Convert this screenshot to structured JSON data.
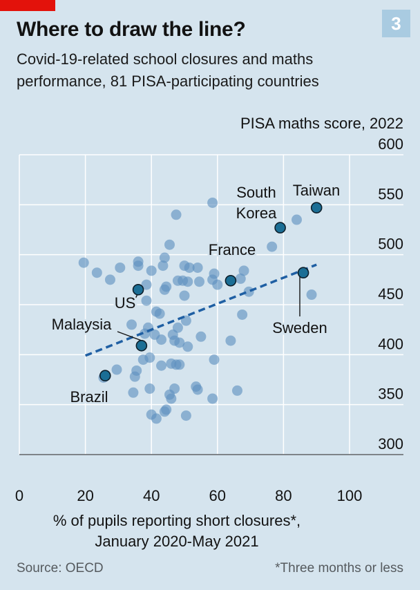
{
  "header": {
    "title": "Where to draw the line?",
    "subtitle": "Covid-19-related school closures and maths performance, 81 PISA-participating countries",
    "badge": "3"
  },
  "footer": {
    "source": "Source: OECD",
    "footnote": "*Three months or less"
  },
  "colors": {
    "background": "#d5e4ee",
    "accent_red": "#e3120b",
    "badge_bg": "#a9cbe1",
    "point": "#5e8fbf",
    "highlight_point": "#1b6e95",
    "trend": "#1f5fa3",
    "grid": "#ffffff"
  },
  "chart_data": {
    "type": "scatter",
    "ylabel": "PISA maths score, 2022",
    "xlabel_line1": "% of pupils reporting short closures*,",
    "xlabel_line2": "January 2020-May 2021",
    "xlim": [
      0,
      100
    ],
    "ylim": [
      300,
      600
    ],
    "x_ticks": [
      "0",
      "20",
      "40",
      "60",
      "80",
      "100"
    ],
    "x_tick_values": [
      0,
      20,
      40,
      60,
      80,
      100
    ],
    "y_ticks": [
      "300",
      "350",
      "400",
      "450",
      "500",
      "550",
      "600"
    ],
    "y_tick_values": [
      300,
      350,
      400,
      450,
      500,
      550,
      600
    ],
    "trend_line": {
      "x": [
        20,
        90
      ],
      "y": [
        399,
        490
      ]
    },
    "highlighted": [
      {
        "name": "Taiwan",
        "x": 90,
        "y": 547
      },
      {
        "name": "South Korea",
        "x": 79,
        "y": 527
      },
      {
        "name": "France",
        "x": 64,
        "y": 474
      },
      {
        "name": "Sweden",
        "x": 86,
        "y": 482
      },
      {
        "name": "US",
        "x": 36,
        "y": 465
      },
      {
        "name": "Malaysia",
        "x": 37,
        "y": 409
      },
      {
        "name": "Brazil",
        "x": 26,
        "y": 379
      }
    ],
    "points": [
      [
        19.5,
        492
      ],
      [
        23.5,
        482
      ],
      [
        25.5,
        377
      ],
      [
        27.5,
        475
      ],
      [
        29.5,
        385
      ],
      [
        30.5,
        487
      ],
      [
        34,
        430
      ],
      [
        34.5,
        362
      ],
      [
        35,
        378
      ],
      [
        35.5,
        384
      ],
      [
        36,
        493
      ],
      [
        36,
        489
      ],
      [
        37.5,
        395
      ],
      [
        38,
        421
      ],
      [
        38.5,
        454
      ],
      [
        38.5,
        470
      ],
      [
        39,
        427
      ],
      [
        39.5,
        397
      ],
      [
        39.5,
        366
      ],
      [
        40,
        484
      ],
      [
        40,
        340
      ],
      [
        41,
        420
      ],
      [
        41.5,
        336
      ],
      [
        41.5,
        443
      ],
      [
        42.5,
        441
      ],
      [
        43,
        389
      ],
      [
        43,
        415
      ],
      [
        43.5,
        489
      ],
      [
        44,
        497
      ],
      [
        44,
        465
      ],
      [
        44,
        343
      ],
      [
        44.5,
        468
      ],
      [
        44.5,
        345
      ],
      [
        45.5,
        510
      ],
      [
        45.5,
        360
      ],
      [
        46,
        356
      ],
      [
        46,
        391
      ],
      [
        46.5,
        420
      ],
      [
        47,
        366
      ],
      [
        47,
        414
      ],
      [
        47.5,
        540
      ],
      [
        47.5,
        390
      ],
      [
        48,
        427
      ],
      [
        48,
        474
      ],
      [
        48.5,
        412
      ],
      [
        48.5,
        390
      ],
      [
        49.5,
        474
      ],
      [
        50,
        459
      ],
      [
        50,
        489
      ],
      [
        50.5,
        434
      ],
      [
        50.5,
        339
      ],
      [
        51,
        473
      ],
      [
        51,
        408
      ],
      [
        51.5,
        487
      ],
      [
        53.5,
        368
      ],
      [
        54,
        487
      ],
      [
        54,
        365
      ],
      [
        54.5,
        473
      ],
      [
        55,
        418
      ],
      [
        58.5,
        552
      ],
      [
        58.5,
        475
      ],
      [
        58.5,
        356
      ],
      [
        59,
        481
      ],
      [
        59,
        395
      ],
      [
        60,
        470
      ],
      [
        64,
        414
      ],
      [
        66,
        364
      ],
      [
        67,
        476
      ],
      [
        67.5,
        440
      ],
      [
        68,
        484
      ],
      [
        69.5,
        463
      ],
      [
        76.5,
        508
      ],
      [
        84,
        535
      ],
      [
        88.5,
        460
      ]
    ]
  }
}
